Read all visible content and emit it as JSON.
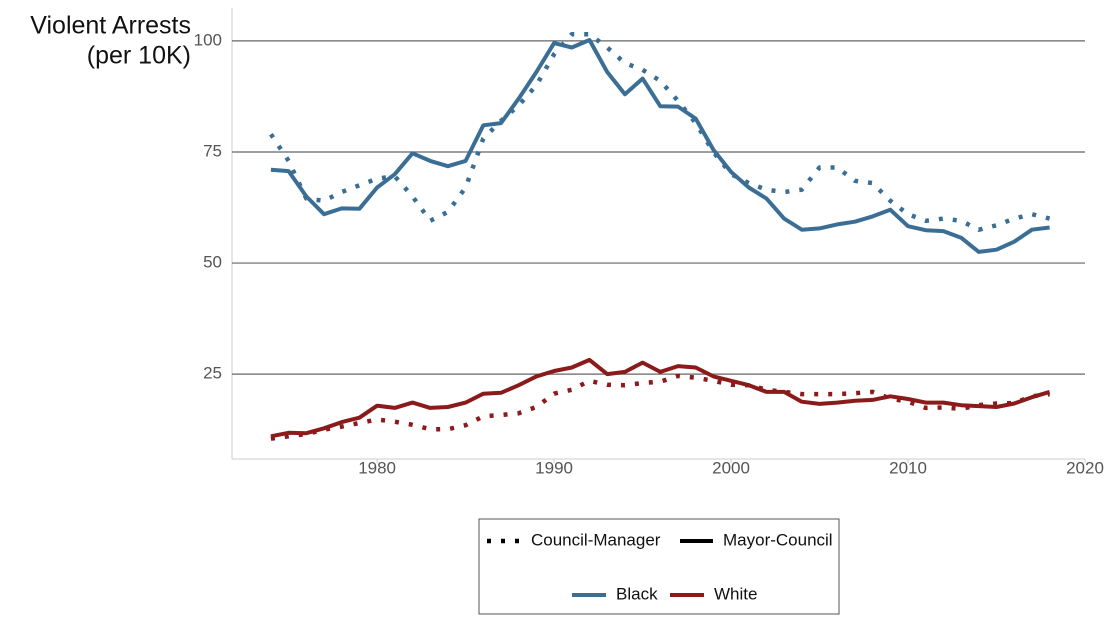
{
  "chart_data": {
    "type": "line",
    "ylabel": [
      "Violent Arrests",
      "(per 10K)"
    ],
    "x": [
      1974,
      1975,
      1976,
      1977,
      1978,
      1979,
      1980,
      1981,
      1982,
      1983,
      1984,
      1985,
      1986,
      1987,
      1988,
      1989,
      1990,
      1991,
      1992,
      1993,
      1994,
      1995,
      1996,
      1997,
      1998,
      1999,
      2000,
      2001,
      2002,
      2003,
      2004,
      2005,
      2006,
      2007,
      2008,
      2009,
      2010,
      2011,
      2012,
      2013,
      2014,
      2015,
      2016,
      2017,
      2018
    ],
    "xlim": [
      1971.8,
      2020
    ],
    "xticks": [
      1980,
      1990,
      2000,
      2010,
      2020
    ],
    "ylim": [
      5.9,
      107.4
    ],
    "yticks": [
      25,
      50,
      75,
      100
    ],
    "grid": true,
    "legend": {
      "linetype": [
        {
          "label": "Council-Manager",
          "dash": "dotted"
        },
        {
          "label": "Mayor-Council",
          "dash": "solid"
        }
      ],
      "color": [
        {
          "label": "Black",
          "color": "#3b6e95"
        },
        {
          "label": "White",
          "color": "#8b1a1a"
        }
      ]
    },
    "series": [
      {
        "group": "Black",
        "form": "Council-Manager",
        "values": [
          79,
          73,
          64.5,
          64,
          66,
          67.5,
          69,
          69.5,
          65,
          59.5,
          61.5,
          67,
          78,
          82,
          85.5,
          90,
          97,
          101.5,
          101.5,
          98.5,
          95,
          93.5,
          91,
          86.5,
          81.5,
          75,
          70,
          68,
          66.5,
          66,
          66.5,
          71.5,
          71.5,
          68.5,
          68,
          64,
          61,
          59.5,
          60,
          59.5,
          57.5,
          58.5,
          60,
          61,
          60
        ]
      },
      {
        "group": "Black",
        "form": "Mayor-Council",
        "values": [
          71,
          70.7,
          65,
          61,
          62.3,
          62.2,
          67,
          70,
          74.7,
          73,
          71.8,
          73,
          81,
          81.5,
          87,
          93,
          99.5,
          98.5,
          100.2,
          93,
          88,
          91.5,
          85.3,
          85.2,
          82.5,
          75.5,
          70.5,
          67,
          64.5,
          60,
          57.5,
          57.8,
          58.7,
          59.3,
          60.5,
          62,
          58.3,
          57.4,
          57.2,
          55.7,
          52.5,
          53,
          54.8,
          57.5,
          58
        ]
      },
      {
        "group": "White",
        "form": "Council-Manager",
        "values": [
          10.5,
          11,
          11.5,
          12.5,
          13.2,
          14,
          14.8,
          14.3,
          13.6,
          12.6,
          12.6,
          13.5,
          15.5,
          15.8,
          16.2,
          17.6,
          20.6,
          21.5,
          23.5,
          22.6,
          22.5,
          23,
          23.3,
          24.6,
          24.2,
          23.5,
          22.6,
          22.5,
          21.5,
          21,
          20.5,
          20.5,
          20.5,
          20.7,
          21,
          19.5,
          18.8,
          17.4,
          17.5,
          17.2,
          18,
          18.4,
          18.5,
          20,
          20.5
        ]
      },
      {
        "group": "White",
        "form": "Mayor-Council",
        "values": [
          11,
          11.8,
          11.7,
          12.8,
          14.2,
          15.2,
          17.9,
          17.4,
          18.6,
          17.4,
          17.6,
          18.6,
          20.6,
          20.8,
          22.5,
          24.5,
          25.7,
          26.5,
          28.2,
          25,
          25.5,
          27.6,
          25.5,
          26.8,
          26.5,
          24.5,
          23.5,
          22.5,
          21,
          21,
          18.8,
          18.3,
          18.6,
          19,
          19.2,
          20,
          19.4,
          18.6,
          18.6,
          18,
          17.8,
          17.6,
          18.4,
          19.8,
          21
        ]
      }
    ]
  }
}
